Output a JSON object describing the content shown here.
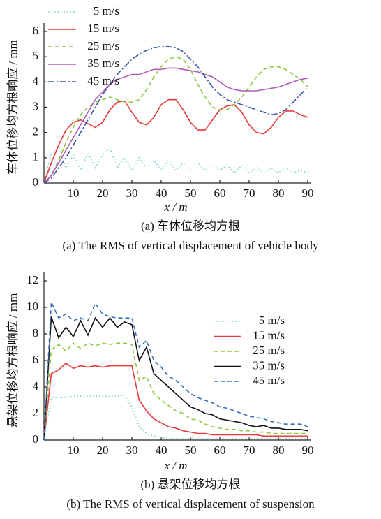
{
  "chart_data": [
    {
      "type": "line",
      "xlabel": "x / m",
      "ylabel": "车体位移均方根响应 / mm",
      "caption_zh": "(a)  车体位移均方根",
      "caption_en": "(a)  The RMS of vertical displacement of vehicle body",
      "legend": "upper left",
      "xlim": [
        0,
        90
      ],
      "xticks": [
        10,
        20,
        30,
        40,
        50,
        60,
        70,
        80,
        90
      ],
      "ylim": [
        0,
        6
      ],
      "yticks": [
        0,
        1,
        2,
        3,
        4,
        5,
        6
      ],
      "x": [
        0,
        2.5,
        5,
        7.5,
        10,
        12.5,
        15,
        17.5,
        20,
        22.5,
        25,
        27.5,
        30,
        32.5,
        35,
        37.5,
        40,
        42.5,
        45,
        47.5,
        50,
        52.5,
        55,
        57.5,
        60,
        62.5,
        65,
        67.5,
        70,
        72.5,
        75,
        77.5,
        80,
        82.5,
        85,
        87.5,
        90
      ],
      "series": [
        {
          "name": "5 m/s",
          "color": "#7ccfcb",
          "style": "dotted",
          "values": [
            0,
            1.2,
            1.4,
            0.6,
            1.1,
            0.5,
            1.2,
            0.6,
            1.1,
            1.4,
            0.6,
            1.0,
            0.5,
            1.0,
            0.6,
            0.9,
            0.5,
            0.9,
            0.5,
            0.8,
            0.5,
            0.8,
            0.5,
            0.7,
            0.5,
            0.7,
            0.4,
            0.7,
            0.4,
            0.6,
            0.4,
            0.6,
            0.4,
            0.6,
            0.4,
            0.5,
            0.4
          ]
        },
        {
          "name": "15 m/s",
          "color": "#e8393a",
          "style": "solid",
          "values": [
            0,
            0.8,
            1.5,
            2.1,
            2.4,
            2.5,
            2.35,
            2.2,
            2.4,
            2.9,
            3.2,
            3.25,
            2.8,
            2.4,
            2.3,
            2.6,
            3.1,
            3.3,
            3.3,
            2.9,
            2.4,
            2.1,
            2.1,
            2.5,
            2.9,
            3.05,
            3.1,
            2.8,
            2.3,
            2.0,
            1.95,
            2.2,
            2.6,
            2.85,
            2.85,
            2.7,
            2.6
          ]
        },
        {
          "name": "25 m/s",
          "color": "#8dc63f",
          "style": "dashed",
          "values": [
            0,
            0.3,
            0.9,
            1.6,
            2.2,
            2.7,
            3.0,
            3.2,
            3.3,
            3.4,
            3.3,
            3.2,
            3.2,
            3.3,
            3.7,
            4.2,
            4.6,
            4.9,
            5.0,
            4.9,
            4.5,
            3.9,
            3.4,
            3.0,
            2.9,
            2.9,
            3.1,
            3.4,
            3.8,
            4.2,
            4.5,
            4.6,
            4.6,
            4.5,
            4.3,
            4.1,
            3.8
          ]
        },
        {
          "name": "35 m/s",
          "color": "#b05cb8",
          "style": "solid",
          "values": [
            0,
            0.3,
            0.8,
            1.3,
            1.8,
            2.3,
            2.8,
            3.3,
            3.6,
            3.9,
            4.1,
            4.2,
            4.3,
            4.3,
            4.4,
            4.5,
            4.5,
            4.55,
            4.55,
            4.5,
            4.45,
            4.4,
            4.3,
            4.2,
            4.0,
            3.8,
            3.7,
            3.65,
            3.65,
            3.65,
            3.7,
            3.75,
            3.8,
            3.9,
            4.0,
            4.1,
            4.15
          ]
        },
        {
          "name": "45 m/s",
          "color": "#3a56a6",
          "style": "dashdot",
          "values": [
            0,
            0.2,
            0.6,
            1.0,
            1.5,
            2.0,
            2.5,
            3.0,
            3.5,
            3.9,
            4.3,
            4.6,
            4.9,
            5.1,
            5.25,
            5.35,
            5.4,
            5.4,
            5.35,
            5.2,
            4.9,
            4.6,
            4.2,
            3.8,
            3.5,
            3.3,
            3.2,
            3.1,
            3.0,
            2.9,
            2.8,
            2.7,
            2.75,
            2.9,
            3.2,
            3.5,
            3.8
          ]
        }
      ]
    },
    {
      "type": "line",
      "xlabel": "x / m",
      "ylabel": "悬架位移均方根响应 / mm",
      "caption_zh": "(b)  悬架位移均方根",
      "caption_en": "(b)  The RMS of vertical displacement of suspension",
      "legend": "right",
      "xlim": [
        0,
        90
      ],
      "xticks": [
        10,
        20,
        30,
        40,
        50,
        60,
        70,
        80,
        90
      ],
      "ylim": [
        0,
        12
      ],
      "yticks": [
        0,
        2,
        4,
        6,
        8,
        10,
        12
      ],
      "x": [
        0,
        2.5,
        5,
        7.5,
        10,
        12.5,
        15,
        17.5,
        20,
        22.5,
        25,
        27.5,
        30,
        32.5,
        35,
        37.5,
        40,
        42.5,
        45,
        47.5,
        50,
        52.5,
        55,
        57.5,
        60,
        62.5,
        65,
        67.5,
        70,
        72.5,
        75,
        77.5,
        80,
        82.5,
        85,
        87.5,
        90
      ],
      "series": [
        {
          "name": "5 m/s",
          "color": "#7ccfcb",
          "style": "dotted",
          "values": [
            0,
            3.2,
            3.2,
            3.2,
            3.3,
            3.3,
            3.3,
            3.3,
            3.3,
            3.3,
            3.3,
            3.4,
            2.5,
            1.0,
            0.5,
            0.3,
            0.2,
            0.15,
            0.1,
            0.1,
            0.1,
            0.1,
            0.1,
            0.1,
            0.1,
            0.1,
            0.1,
            0.1,
            0.1,
            0.1,
            0.1,
            0.1,
            0.1,
            0.1,
            0.1,
            0.1,
            0.1
          ]
        },
        {
          "name": "15 m/s",
          "color": "#e8393a",
          "style": "solid",
          "values": [
            0,
            5.0,
            5.3,
            5.8,
            5.4,
            5.6,
            5.5,
            5.6,
            5.5,
            5.6,
            5.6,
            5.6,
            5.6,
            3.0,
            2.2,
            1.6,
            1.3,
            1.0,
            0.9,
            0.7,
            0.6,
            0.5,
            0.5,
            0.4,
            0.4,
            0.4,
            0.4,
            0.4,
            0.4,
            0.4,
            0.3,
            0.3,
            0.3,
            0.3,
            0.3,
            0.3,
            0.3
          ]
        },
        {
          "name": "25 m/s",
          "color": "#8dc63f",
          "style": "dashed",
          "values": [
            0,
            6.8,
            7.2,
            6.7,
            7.3,
            6.9,
            7.3,
            7.1,
            7.3,
            7.2,
            7.3,
            7.3,
            7.2,
            4.5,
            4.8,
            3.5,
            3.0,
            2.6,
            2.2,
            2.0,
            1.6,
            1.5,
            1.2,
            1.0,
            0.9,
            0.8,
            0.8,
            0.7,
            0.7,
            0.6,
            0.6,
            0.5,
            0.5,
            0.5,
            0.5,
            0.5,
            0.5
          ]
        },
        {
          "name": "35 m/s",
          "color": "#111111",
          "style": "solid",
          "values": [
            0,
            9.3,
            7.7,
            8.5,
            7.8,
            9.0,
            7.9,
            9.2,
            8.5,
            9.2,
            8.5,
            8.9,
            8.7,
            6.0,
            7.0,
            5.0,
            4.5,
            4.0,
            3.5,
            3.0,
            2.5,
            2.3,
            2.0,
            1.9,
            1.6,
            1.5,
            1.4,
            1.3,
            1.1,
            1.0,
            1.1,
            0.9,
            0.9,
            0.8,
            0.8,
            0.8,
            0.7
          ]
        },
        {
          "name": "45 m/s",
          "color": "#3a6fb8",
          "style": "dashed",
          "values": [
            0,
            10.4,
            9.2,
            9.5,
            9.0,
            9.2,
            9.0,
            10.3,
            9.5,
            9.3,
            9.2,
            9.2,
            9.2,
            7.0,
            7.5,
            6.0,
            5.5,
            4.8,
            4.5,
            4.0,
            3.5,
            3.2,
            3.0,
            2.8,
            2.5,
            2.4,
            2.2,
            2.0,
            1.8,
            1.7,
            1.6,
            1.4,
            1.3,
            1.2,
            1.2,
            1.2,
            1.0
          ]
        }
      ]
    }
  ]
}
